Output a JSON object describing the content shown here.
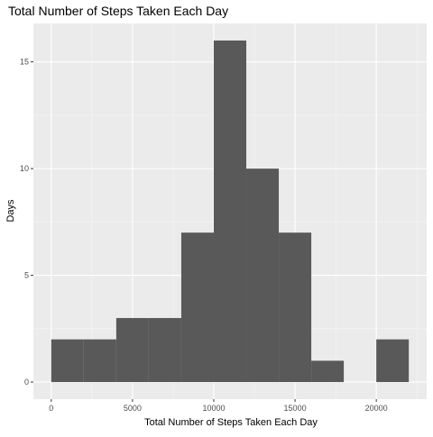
{
  "chart_data": {
    "type": "bar",
    "subtype": "histogram",
    "title": "Total Number of Steps Taken Each Day",
    "xlabel": "Total Number of Steps Taken Each Day",
    "ylabel": "Days",
    "bin_width": 2000,
    "bins": [
      {
        "x0": 0,
        "x1": 2000,
        "count": 2
      },
      {
        "x0": 2000,
        "x1": 4000,
        "count": 2
      },
      {
        "x0": 4000,
        "x1": 6000,
        "count": 3
      },
      {
        "x0": 6000,
        "x1": 8000,
        "count": 3
      },
      {
        "x0": 8000,
        "x1": 10000,
        "count": 7
      },
      {
        "x0": 10000,
        "x1": 12000,
        "count": 16
      },
      {
        "x0": 12000,
        "x1": 14000,
        "count": 10
      },
      {
        "x0": 14000,
        "x1": 16000,
        "count": 7
      },
      {
        "x0": 16000,
        "x1": 18000,
        "count": 1
      },
      {
        "x0": 18000,
        "x1": 20000,
        "count": 0
      },
      {
        "x0": 20000,
        "x1": 22000,
        "count": 2
      }
    ],
    "xlim": [
      -1100,
      23100
    ],
    "ylim": [
      -0.8,
      16.8
    ],
    "x_ticks": [
      0,
      5000,
      10000,
      15000,
      20000
    ],
    "x_tick_labels": [
      "0",
      "5000",
      "10000",
      "15000",
      "20000"
    ],
    "x_minor_ticks": [
      2500,
      7500,
      12500,
      17500,
      22500
    ],
    "y_ticks": [
      0,
      5,
      10,
      15
    ],
    "y_tick_labels": [
      "0",
      "5",
      "10",
      "15"
    ],
    "y_minor_ticks": [
      2.5,
      7.5,
      12.5
    ],
    "grid": true,
    "legend": "none",
    "colors": {
      "bar_fill": "#595959",
      "panel_background": "#ebebeb",
      "grid_major": "#ffffff",
      "grid_minor": "#f5f5f5",
      "tick_label": "#4d4d4d"
    }
  }
}
